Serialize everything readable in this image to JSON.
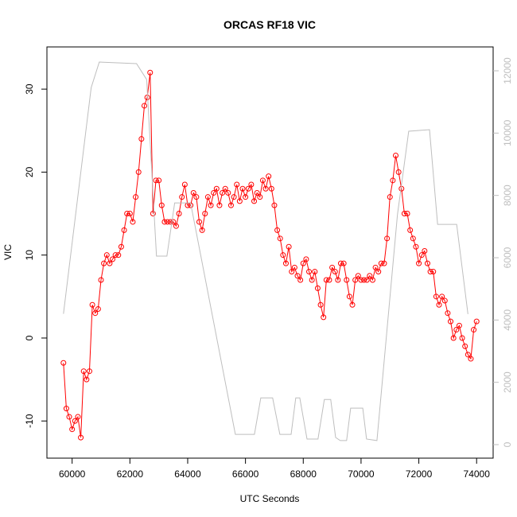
{
  "chart_data": {
    "type": "scatter",
    "title": "ORCAS RF18 VIC",
    "xlabel": "UTC Seconds",
    "ylabel": "VIC",
    "xlim": [
      59128,
      74572
    ],
    "xticks": [
      60000,
      62000,
      64000,
      66000,
      68000,
      70000,
      72000,
      74000
    ],
    "ylim": [
      -14.48,
      35.09
    ],
    "yticks": [
      -10,
      0,
      10,
      20,
      30
    ],
    "y2lim": [
      -434,
      12766
    ],
    "y2ticks": [
      0,
      2000,
      4000,
      6000,
      8000,
      10000,
      12000
    ],
    "series": [
      {
        "color": "#ff0000",
        "marker": "circle",
        "x": [
          59700,
          59800,
          59900,
          60000,
          60100,
          60200,
          60300,
          60400,
          60500,
          60600,
          60700,
          60800,
          60900,
          61000,
          61100,
          61200,
          61300,
          61400,
          61500,
          61600,
          61700,
          61800,
          61900,
          62000,
          62100,
          62200,
          62300,
          62400,
          62500,
          62600,
          62700,
          62800,
          62900,
          63000,
          63100,
          63200,
          63300,
          63400,
          63500,
          63600,
          63700,
          63800,
          63900,
          64000,
          64100,
          64200,
          64300,
          64400,
          64500,
          64600,
          64700,
          64800,
          64900,
          65000,
          65100,
          65200,
          65300,
          65400,
          65500,
          65600,
          65700,
          65800,
          65900,
          66000,
          66100,
          66200,
          66300,
          66400,
          66500,
          66600,
          66700,
          66800,
          66900,
          67000,
          67100,
          67200,
          67300,
          67400,
          67500,
          67600,
          67700,
          67800,
          67900,
          68000,
          68100,
          68200,
          68300,
          68400,
          68500,
          68600,
          68700,
          68800,
          68900,
          69000,
          69100,
          69200,
          69300,
          69400,
          69500,
          69600,
          69700,
          69800,
          69900,
          70000,
          70100,
          70200,
          70300,
          70400,
          70500,
          70600,
          70700,
          70800,
          70900,
          71000,
          71100,
          71200,
          71300,
          71400,
          71500,
          71600,
          71700,
          71800,
          71900,
          72000,
          72100,
          72200,
          72300,
          72400,
          72500,
          72600,
          72700,
          72800,
          72900,
          73000,
          73100,
          73200,
          73300,
          73400,
          73500,
          73600,
          73700,
          73800,
          73900,
          74000
        ],
        "values": [
          -3,
          -8.5,
          -9.5,
          -11,
          -10,
          -9.5,
          -12,
          -4,
          -5,
          -4,
          4,
          3,
          3.5,
          7,
          9,
          10,
          9,
          9.5,
          10,
          10,
          11,
          13,
          15,
          15,
          14,
          17,
          20,
          24,
          28,
          29,
          32,
          15,
          19,
          19,
          16,
          14,
          14,
          14,
          14,
          13.5,
          15,
          17,
          18.5,
          16,
          16,
          17.5,
          17,
          14,
          13,
          15,
          17,
          16,
          17.5,
          18,
          16,
          17.5,
          18,
          17.5,
          16,
          17,
          18.5,
          16.5,
          18,
          17,
          18,
          18.5,
          16.5,
          17.5,
          17,
          19,
          18,
          19.5,
          18,
          16,
          13,
          12,
          10,
          9,
          11,
          8,
          8.5,
          7.5,
          7,
          9,
          9.5,
          8,
          7,
          8,
          6,
          4,
          2.5,
          7,
          7,
          8.5,
          8,
          7,
          9,
          9,
          7,
          5,
          4,
          7,
          7.5,
          7,
          7,
          7,
          7.5,
          7,
          8.5,
          8,
          9,
          9,
          12,
          17,
          19,
          22,
          20,
          18,
          15,
          15,
          13,
          12,
          11,
          9,
          10,
          10.5,
          9,
          8,
          8,
          5,
          4,
          5,
          4.5,
          3,
          2,
          0,
          1,
          1.5,
          0,
          -1,
          -2,
          -2.5,
          1,
          2
        ]
      },
      {
        "color": "#bebebe",
        "marker": "line",
        "axis": "y2",
        "x": [
          59700,
          60440,
          60660,
          60940,
          62230,
          62580,
          62920,
          63280,
          63550,
          64100,
          65650,
          66310,
          66530,
          66940,
          67190,
          67580,
          67740,
          67880,
          68130,
          68510,
          68730,
          68950,
          69120,
          69280,
          69500,
          69640,
          70060,
          70190,
          70550,
          71260,
          71650,
          72370,
          72650,
          73310,
          73700
        ],
        "values": [
          4200,
          9800,
          11460,
          12280,
          12230,
          11720,
          6050,
          6050,
          7760,
          7760,
          330,
          330,
          1500,
          1500,
          330,
          330,
          1500,
          1500,
          180,
          180,
          1450,
          1450,
          230,
          130,
          130,
          1170,
          1170,
          180,
          130,
          7380,
          10060,
          10110,
          7070,
          7070,
          4190
        ]
      }
    ]
  }
}
